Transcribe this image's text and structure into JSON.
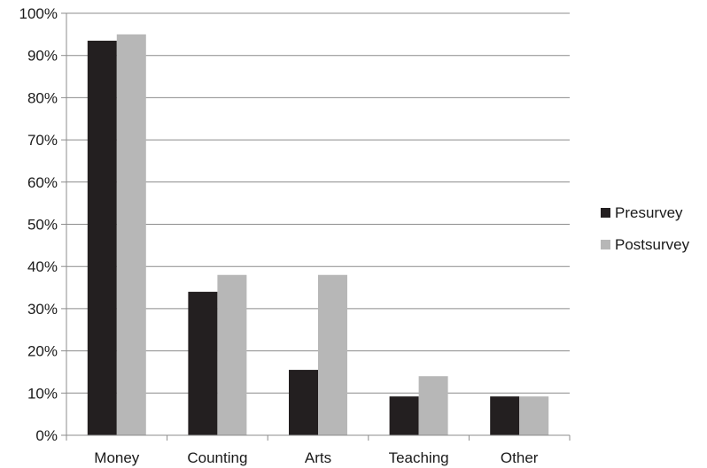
{
  "chart_data": {
    "type": "bar",
    "title": "",
    "xlabel": "",
    "ylabel": "",
    "categories": [
      "Money",
      "Counting",
      "Arts",
      "Teaching",
      "Other"
    ],
    "series": [
      {
        "name": "Presurvey",
        "color": "#231f20",
        "values": [
          93.5,
          34,
          15.5,
          9.2,
          9.2
        ]
      },
      {
        "name": "Postsurvey",
        "color": "#b7b7b7",
        "values": [
          95,
          38,
          38,
          14,
          9.2
        ]
      }
    ],
    "ylim": [
      0,
      100
    ],
    "yticks": [
      0,
      10,
      20,
      30,
      40,
      50,
      60,
      70,
      80,
      90,
      100
    ],
    "ytick_labels": [
      "0%",
      "10%",
      "20%",
      "30%",
      "40%",
      "50%",
      "60%",
      "70%",
      "80%",
      "90%",
      "100%"
    ],
    "grid": true,
    "legend": "right"
  }
}
